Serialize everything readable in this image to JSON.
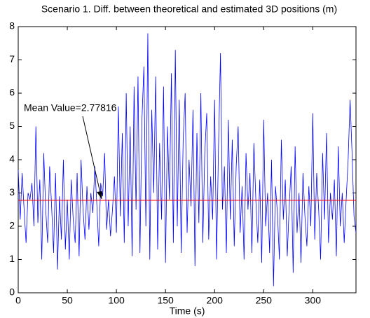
{
  "chart_data": {
    "type": "line",
    "title": "Scenario 1. Diff. between theoretical and estimated 3D positions (m)",
    "x_label": "Time (s)",
    "x": [
      0,
      2,
      4,
      6,
      8,
      10,
      12,
      14,
      16,
      18,
      20,
      22,
      24,
      26,
      28,
      30,
      32,
      34,
      36,
      38,
      40,
      42,
      44,
      46,
      48,
      50,
      52,
      54,
      56,
      58,
      60,
      62,
      64,
      66,
      68,
      70,
      72,
      74,
      76,
      78,
      80,
      82,
      84,
      86,
      88,
      90,
      92,
      94,
      96,
      98,
      100,
      102,
      104,
      106,
      108,
      110,
      112,
      114,
      116,
      118,
      120,
      122,
      124,
      126,
      128,
      130,
      132,
      134,
      136,
      138,
      140,
      142,
      144,
      146,
      148,
      150,
      152,
      154,
      156,
      158,
      160,
      162,
      164,
      166,
      168,
      170,
      172,
      174,
      176,
      178,
      180,
      182,
      184,
      186,
      188,
      190,
      192,
      194,
      196,
      198,
      200,
      202,
      204,
      206,
      208,
      210,
      212,
      214,
      216,
      218,
      220,
      222,
      224,
      226,
      228,
      230,
      232,
      234,
      236,
      238,
      240,
      242,
      244,
      246,
      248,
      250,
      252,
      254,
      256,
      258,
      260,
      262,
      264,
      266,
      268,
      270,
      272,
      274,
      276,
      278,
      280,
      282,
      284,
      286,
      288,
      290,
      292,
      294,
      296,
      298,
      300,
      302,
      304,
      306,
      308,
      310,
      312,
      314,
      316,
      318,
      320,
      322,
      324,
      326,
      328,
      330,
      332,
      334,
      336,
      338,
      340,
      342,
      344
    ],
    "series": [
      {
        "color": "#0000ff",
        "values": [
          3.7,
          2.2,
          3.6,
          2.5,
          1.5,
          3.0,
          2.8,
          3.3,
          2.0,
          5.0,
          2.1,
          3.4,
          1.0,
          4.2,
          2.5,
          1.5,
          3.8,
          2.6,
          1.2,
          3.6,
          0.7,
          2.9,
          1.6,
          4.0,
          1.3,
          2.8,
          1.0,
          3.4,
          2.2,
          1.5,
          3.6,
          1.1,
          4.0,
          2.5,
          1.6,
          3.2,
          1.9,
          3.0,
          2.4,
          3.8,
          2.7,
          1.4,
          3.3,
          2.9,
          4.2,
          1.9,
          2.8,
          1.7,
          2.5,
          3.5,
          1.8,
          5.6,
          2.3,
          4.8,
          1.5,
          6.0,
          2.0,
          5.0,
          1.1,
          6.2,
          2.5,
          6.5,
          1.2,
          5.2,
          6.8,
          2.0,
          7.8,
          1.0,
          5.5,
          3.0,
          6.5,
          1.3,
          4.5,
          2.2,
          6.2,
          0.9,
          5.0,
          2.8,
          6.6,
          1.5,
          7.3,
          2.0,
          5.8,
          1.2,
          4.6,
          6.0,
          1.8,
          4.0,
          2.6,
          5.5,
          0.8,
          4.8,
          2.1,
          6.0,
          1.5,
          4.2,
          5.4,
          1.6,
          3.5,
          2.2,
          5.8,
          1.0,
          4.4,
          7.2,
          2.5,
          3.8,
          1.2,
          5.2,
          2.2,
          4.6,
          1.4,
          3.8,
          5.0,
          1.8,
          3.2,
          1.0,
          4.2,
          2.5,
          3.6,
          1.2,
          4.5,
          2.8,
          1.5,
          3.4,
          0.9,
          5.2,
          2.0,
          3.0,
          1.2,
          4.0,
          0.2,
          3.2,
          2.4,
          1.0,
          4.6,
          2.2,
          3.4,
          1.1,
          2.6,
          3.8,
          0.6,
          4.4,
          1.8,
          3.0,
          0.9,
          3.6,
          2.3,
          1.4,
          3.2,
          2.0,
          5.4,
          1.6,
          3.6,
          2.5,
          1.0,
          4.2,
          2.2,
          4.8,
          1.5,
          3.0,
          2.2,
          3.4,
          1.1,
          4.4,
          2.0,
          3.0,
          1.5,
          2.8,
          4.0,
          5.8,
          4.2,
          2.3,
          1.8
        ]
      }
    ],
    "mean_line": {
      "value": 2.77816,
      "color": "#ff0000"
    },
    "annotation": "Mean Value=2.77816",
    "xlim": [
      0,
      344
    ],
    "xticks": [
      0,
      50,
      100,
      150,
      200,
      250,
      300
    ],
    "ylim": [
      0,
      8
    ],
    "yticks": [
      0,
      1,
      2,
      3,
      4,
      5,
      6,
      7,
      8
    ]
  }
}
